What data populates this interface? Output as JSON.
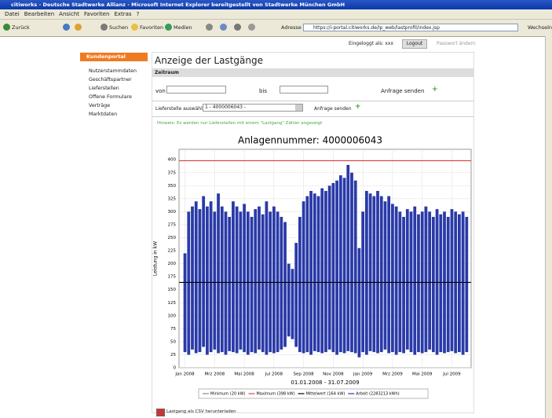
{
  "browser": {
    "title": "citiworks - Deutsche Stadtwerke Allianz - Microsoft Internet Explorer bereitgestellt von Stadtwerke München GmbH",
    "menu": [
      "Datei",
      "Bearbeiten",
      "Ansicht",
      "Favoriten",
      "Extras",
      "?"
    ],
    "toolbar": [
      "Zurück",
      "Suchen",
      "Favoriten",
      "Medien"
    ],
    "address_label": "Adresse",
    "url": "https://i-portal.citiworks.de/lp_web/lastprofil/index.jsp",
    "go": "Wechseln zu"
  },
  "header": {
    "login": "Eingeloggt als: xxx",
    "logout": "Logout",
    "password": "Passwort ändern"
  },
  "sidebar": {
    "title": "Kundenportal",
    "items": [
      "Nutzerstammdaten",
      "Geschäftspartner",
      "Lieferstellen",
      "Offene Formulare",
      "Verträge",
      "Marktdaten"
    ]
  },
  "main": {
    "heading": "Anzeige der Lastgänge",
    "section": "Zeitraum",
    "from": "von",
    "to": "bis",
    "send": "Anfrage senden",
    "select_label": "Lieferstelle auswählen:",
    "select_value": "1 - 4000006043 -",
    "hint": "Hinweis: Es werden nur Lieferstellen mit einem \"Lastgang\" Zähler angezeigt",
    "csv": "Lastgang als CSV herunterladen"
  },
  "chart_data": {
    "type": "load_profile",
    "title": "Anlagennummer: 4000006043",
    "subtitle": "01.01.2008 - 31.07.2009",
    "y_label": "Leistung in kW",
    "color": "#2a3aa8",
    "xlim": [
      -0.4,
      19.3
    ],
    "xticks": [
      {
        "value": 0,
        "label": "Jan 2008"
      },
      {
        "value": 2,
        "label": "Mrz 2008"
      },
      {
        "value": 4,
        "label": "Mai 2008"
      },
      {
        "value": 6,
        "label": "Jul 2008"
      },
      {
        "value": 8,
        "label": "Sep 2008"
      },
      {
        "value": 10,
        "label": "Nov 2008"
      },
      {
        "value": 12,
        "label": "Jan 2009"
      },
      {
        "value": 14,
        "label": "Mrz 2009"
      },
      {
        "value": 16,
        "label": "Mai 2009"
      },
      {
        "value": 18,
        "label": "Jul 2009"
      }
    ],
    "ylim": [
      0,
      420
    ],
    "yticks": [
      0,
      25,
      50,
      75,
      100,
      125,
      150,
      175,
      200,
      225,
      250,
      275,
      300,
      325,
      350,
      375,
      400
    ],
    "grid": true,
    "x": [
      0,
      0.25,
      0.5,
      0.75,
      1,
      1.25,
      1.5,
      1.75,
      2,
      2.25,
      2.5,
      2.75,
      3,
      3.25,
      3.5,
      3.75,
      4,
      4.25,
      4.5,
      4.75,
      5,
      5.25,
      5.5,
      5.75,
      6,
      6.25,
      6.5,
      6.75,
      7,
      7.25,
      7.5,
      7.75,
      8,
      8.25,
      8.5,
      8.75,
      9,
      9.25,
      9.5,
      9.75,
      10,
      10.25,
      10.5,
      10.75,
      11,
      11.25,
      11.5,
      11.75,
      12,
      12.25,
      12.5,
      12.75,
      13,
      13.25,
      13.5,
      13.75,
      14,
      14.25,
      14.5,
      14.75,
      15,
      15.25,
      15.5,
      15.75,
      16,
      16.25,
      16.5,
      16.75,
      17,
      17.25,
      17.5,
      17.75,
      18,
      18.25,
      18.5,
      18.75,
      19
    ],
    "peaks": [
      220,
      300,
      310,
      320,
      305,
      330,
      310,
      320,
      300,
      335,
      310,
      300,
      290,
      320,
      310,
      300,
      315,
      300,
      290,
      305,
      310,
      295,
      320,
      300,
      310,
      300,
      290,
      280,
      200,
      190,
      240,
      290,
      320,
      330,
      340,
      335,
      330,
      345,
      340,
      350,
      355,
      360,
      370,
      365,
      390,
      375,
      360,
      230,
      300,
      340,
      335,
      330,
      340,
      330,
      320,
      330,
      315,
      310,
      300,
      290,
      305,
      300,
      310,
      295,
      300,
      310,
      300,
      290,
      305,
      295,
      300,
      290,
      305,
      300,
      295,
      300,
      290
    ],
    "lows": [
      30,
      25,
      35,
      28,
      30,
      40,
      25,
      30,
      35,
      28,
      30,
      25,
      32,
      30,
      28,
      35,
      30,
      25,
      30,
      28,
      35,
      30,
      25,
      30,
      28,
      30,
      35,
      40,
      60,
      55,
      40,
      30,
      28,
      30,
      25,
      32,
      30,
      28,
      30,
      35,
      30,
      25,
      30,
      28,
      32,
      30,
      28,
      20,
      30,
      25,
      32,
      30,
      28,
      30,
      35,
      28,
      30,
      25,
      30,
      28,
      35,
      30,
      25,
      30,
      28,
      30,
      35,
      30,
      25,
      30,
      28,
      30,
      32,
      28,
      30,
      25,
      30
    ],
    "lines": [
      {
        "value": 398,
        "color": "#e04848"
      },
      {
        "value": 164,
        "color": "#000000"
      }
    ],
    "legend": [
      "Minimum (20 kW)",
      "Maximum (398 kW)",
      "Mittelwert (164 kW)",
      "Arbeit (2283213 kWh)"
    ]
  }
}
